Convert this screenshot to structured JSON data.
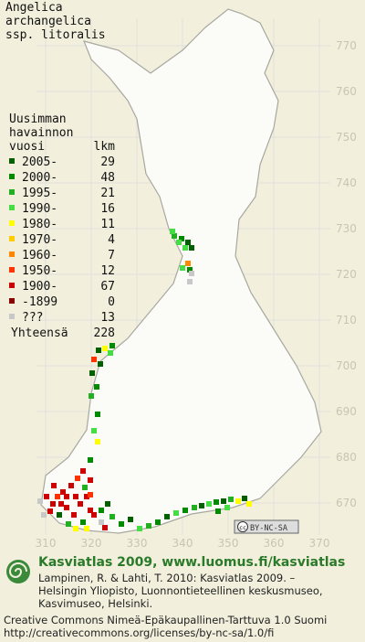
{
  "title": [
    "Angelica",
    "archangelica",
    "ssp. litoralis"
  ],
  "legend": {
    "header": [
      "Uusimman",
      "havainnon"
    ],
    "col_year": "vuosi",
    "col_count": "lkm",
    "rows": [
      {
        "label": "2005-",
        "count": 29,
        "color": "#006000"
      },
      {
        "label": "2000-",
        "count": 48,
        "color": "#008a00"
      },
      {
        "label": "1995-",
        "count": 21,
        "color": "#22b022"
      },
      {
        "label": "1990-",
        "count": 16,
        "color": "#44dd44"
      },
      {
        "label": "1980-",
        "count": 11,
        "color": "#ffff00"
      },
      {
        "label": "1970-",
        "count": 4,
        "color": "#ffcc00"
      },
      {
        "label": "1960-",
        "count": 7,
        "color": "#ff8800"
      },
      {
        "label": "1950-",
        "count": 12,
        "color": "#ff3300"
      },
      {
        "label": "1900-",
        "count": 67,
        "color": "#cc0000"
      },
      {
        "label": "-1899",
        "count": 0,
        "color": "#880000"
      },
      {
        "label": "???",
        "count": 13,
        "color": "#c8c8c8"
      }
    ],
    "total_label": "Yhteensä",
    "total": 228
  },
  "grid": {
    "north": [
      770,
      760,
      750,
      740,
      730,
      720,
      710,
      700,
      690,
      680,
      670
    ],
    "east": [
      310,
      320,
      330,
      340,
      350,
      360,
      370
    ]
  },
  "cc_badge": {
    "icon": "cc",
    "text": "BY-NC-SA"
  },
  "footer": {
    "heading": "Kasviatlas 2009, www.luomus.fi/kasviatlas",
    "citation": [
      "Lampinen, R. & Lahti, T. 2010: Kasviatlas 2009. –",
      "Helsingin Yliopisto, Luonnontieteellinen keskusmuseo,",
      "Kasvimuseo, Helsinki."
    ],
    "license": [
      "Creative Commons Nimeä-Epäkaupallinen-Tarttuva 1.0 Suomi",
      "http://creativecommons.org/licenses/by-nc-sa/1.0/fi"
    ]
  }
}
